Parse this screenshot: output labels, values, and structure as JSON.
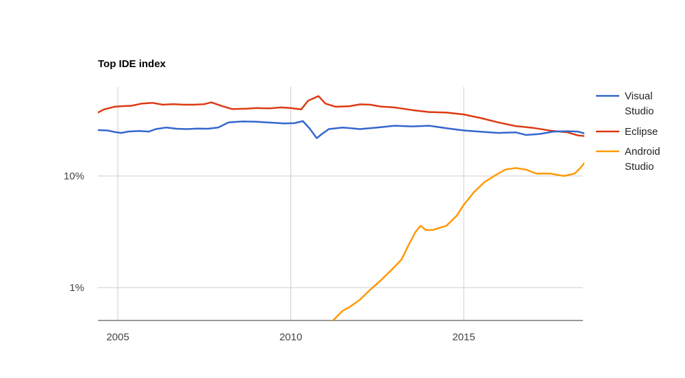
{
  "chart_data": {
    "type": "line",
    "title": "Top IDE index",
    "xlabel": "",
    "ylabel": "",
    "y_scale": "log",
    "xlim": [
      2004.4,
      2018.5
    ],
    "ylim": [
      0.5,
      55
    ],
    "x_ticks": [
      {
        "value": 2005,
        "label": "2005"
      },
      {
        "value": 2010,
        "label": "2010"
      },
      {
        "value": 2015,
        "label": "2015"
      }
    ],
    "y_ticks": [
      {
        "value": 10,
        "label": "10%"
      },
      {
        "value": 1,
        "label": "1%"
      }
    ],
    "grid": true,
    "legend_position": "right",
    "series": [
      {
        "name": "Visual Studio",
        "legend_lines": [
          "Visual",
          "Studio"
        ],
        "color": "#3366cc",
        "points": [
          [
            2004.4,
            25.8
          ],
          [
            2004.7,
            25.6
          ],
          [
            2004.9,
            24.8
          ],
          [
            2005.1,
            24.3
          ],
          [
            2005.3,
            25.0
          ],
          [
            2005.6,
            25.3
          ],
          [
            2005.9,
            25.0
          ],
          [
            2006.1,
            26.3
          ],
          [
            2006.4,
            27.2
          ],
          [
            2006.7,
            26.5
          ],
          [
            2007.0,
            26.3
          ],
          [
            2007.3,
            26.6
          ],
          [
            2007.6,
            26.5
          ],
          [
            2007.9,
            27.2
          ],
          [
            2008.2,
            30.2
          ],
          [
            2008.6,
            30.8
          ],
          [
            2009.0,
            30.6
          ],
          [
            2009.4,
            30.1
          ],
          [
            2009.8,
            29.6
          ],
          [
            2010.1,
            29.7
          ],
          [
            2010.35,
            31.0
          ],
          [
            2010.55,
            26.5
          ],
          [
            2010.75,
            21.8
          ],
          [
            2010.9,
            23.8
          ],
          [
            2011.1,
            26.3
          ],
          [
            2011.5,
            27.2
          ],
          [
            2012.0,
            26.3
          ],
          [
            2012.5,
            27.2
          ],
          [
            2013.0,
            28.2
          ],
          [
            2013.5,
            27.8
          ],
          [
            2014.0,
            28.2
          ],
          [
            2014.5,
            26.8
          ],
          [
            2015.0,
            25.6
          ],
          [
            2015.5,
            24.9
          ],
          [
            2016.0,
            24.3
          ],
          [
            2016.5,
            24.6
          ],
          [
            2016.8,
            23.3
          ],
          [
            2017.2,
            23.8
          ],
          [
            2017.6,
            25.0
          ],
          [
            2018.0,
            25.2
          ],
          [
            2018.3,
            25.0
          ],
          [
            2018.5,
            24.0
          ]
        ]
      },
      {
        "name": "Eclipse",
        "legend_lines": [
          "Eclipse"
        ],
        "color": "#dc3912",
        "points": [
          [
            2004.4,
            36.7
          ],
          [
            2004.6,
            39.5
          ],
          [
            2004.9,
            41.7
          ],
          [
            2005.1,
            42.2
          ],
          [
            2005.4,
            42.6
          ],
          [
            2005.7,
            44.6
          ],
          [
            2006.0,
            45.2
          ],
          [
            2006.3,
            43.5
          ],
          [
            2006.6,
            44.0
          ],
          [
            2006.9,
            43.5
          ],
          [
            2007.2,
            43.5
          ],
          [
            2007.5,
            44.0
          ],
          [
            2007.7,
            45.7
          ],
          [
            2008.0,
            42.4
          ],
          [
            2008.3,
            39.8
          ],
          [
            2008.7,
            40.1
          ],
          [
            2009.0,
            40.6
          ],
          [
            2009.4,
            40.4
          ],
          [
            2009.7,
            41.1
          ],
          [
            2010.0,
            40.6
          ],
          [
            2010.3,
            39.5
          ],
          [
            2010.5,
            47.2
          ],
          [
            2010.8,
            52.0
          ],
          [
            2011.0,
            44.6
          ],
          [
            2011.3,
            41.7
          ],
          [
            2011.7,
            42.2
          ],
          [
            2012.0,
            43.8
          ],
          [
            2012.3,
            43.5
          ],
          [
            2012.6,
            41.9
          ],
          [
            2013.0,
            41.1
          ],
          [
            2013.5,
            39.0
          ],
          [
            2014.0,
            37.4
          ],
          [
            2014.5,
            37.0
          ],
          [
            2015.0,
            35.6
          ],
          [
            2015.5,
            33.0
          ],
          [
            2016.0,
            30.2
          ],
          [
            2016.5,
            28.0
          ],
          [
            2017.0,
            27.0
          ],
          [
            2017.5,
            25.5
          ],
          [
            2018.0,
            24.6
          ],
          [
            2018.3,
            23.1
          ],
          [
            2018.5,
            22.8
          ]
        ]
      },
      {
        "name": "Android Studio",
        "legend_lines": [
          "Android",
          "Studio"
        ],
        "color": "#ff9900",
        "points": [
          [
            2011.2,
            0.5
          ],
          [
            2011.5,
            0.62
          ],
          [
            2011.7,
            0.67
          ],
          [
            2012.0,
            0.78
          ],
          [
            2012.3,
            0.96
          ],
          [
            2012.6,
            1.16
          ],
          [
            2012.9,
            1.43
          ],
          [
            2013.2,
            1.78
          ],
          [
            2013.4,
            2.39
          ],
          [
            2013.6,
            3.13
          ],
          [
            2013.75,
            3.58
          ],
          [
            2013.9,
            3.28
          ],
          [
            2014.1,
            3.28
          ],
          [
            2014.3,
            3.43
          ],
          [
            2014.5,
            3.58
          ],
          [
            2014.8,
            4.42
          ],
          [
            2015.0,
            5.52
          ],
          [
            2015.3,
            7.2
          ],
          [
            2015.6,
            8.8
          ],
          [
            2015.9,
            10.1
          ],
          [
            2016.2,
            11.4
          ],
          [
            2016.5,
            11.8
          ],
          [
            2016.8,
            11.4
          ],
          [
            2017.1,
            10.5
          ],
          [
            2017.5,
            10.5
          ],
          [
            2017.9,
            10.0
          ],
          [
            2018.2,
            10.5
          ],
          [
            2018.35,
            11.6
          ],
          [
            2018.5,
            13.2
          ]
        ]
      }
    ]
  }
}
